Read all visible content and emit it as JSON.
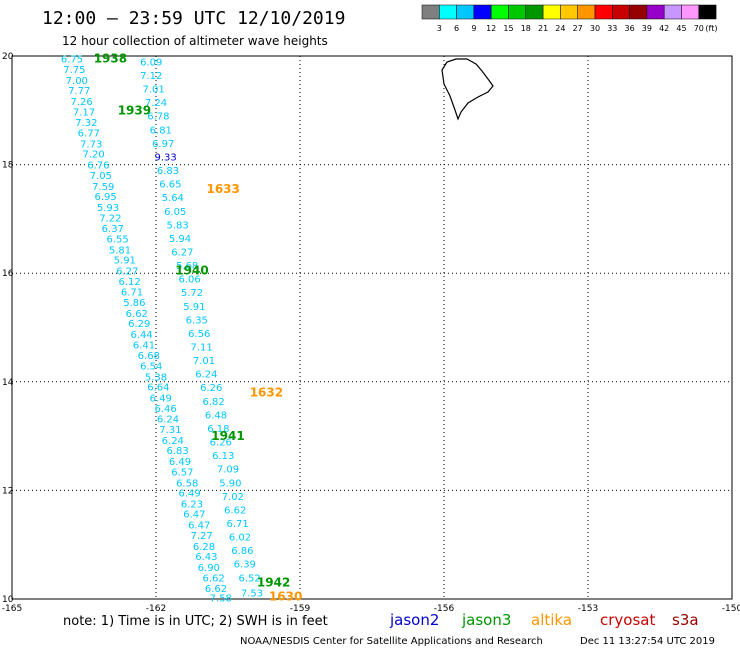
{
  "header": {
    "title": "12:00 – 23:59 UTC 12/10/2019",
    "subtitle": "12 hour collection of altimeter wave heights"
  },
  "colorbar": {
    "colors": [
      "#7f7f7f",
      "#00ffff",
      "#00c8ff",
      "#0000ff",
      "#00ff00",
      "#00c800",
      "#009600",
      "#ffff00",
      "#ffc800",
      "#ff9600",
      "#ff0000",
      "#c80000",
      "#960000",
      "#9600c8",
      "#c896ff",
      "#ff96ff",
      "#000000"
    ],
    "labels": [
      "3",
      "6",
      "9",
      "12",
      "15",
      "18",
      "21",
      "24",
      "27",
      "30",
      "33",
      "36",
      "39",
      "42",
      "45",
      "70",
      "(ft)"
    ]
  },
  "note": "note:  1) Time is in UTC;  2) SWH is in feet",
  "missions": [
    {
      "name": "jason2",
      "color": "#0000cc"
    },
    {
      "name": "jason3",
      "color": "#009600"
    },
    {
      "name": "altika",
      "color": "#ff9600"
    },
    {
      "name": "cryosat",
      "color": "#c80000"
    },
    {
      "name": "s3a",
      "color": "#960000"
    }
  ],
  "credit": "NOAA/NESDIS Center for Satellite Applications and Research",
  "timestamp": "Dec 11 13:27:54 UTC 2019",
  "chart_data": {
    "type": "scatter",
    "title": "12 hour collection of altimeter wave heights",
    "xlim": [
      -165,
      -150
    ],
    "ylim": [
      10,
      20
    ],
    "x_ticks": [
      "-165",
      "-162",
      "-159",
      "-156",
      "-153",
      "-150"
    ],
    "y_ticks": [
      "10",
      "12",
      "14",
      "16",
      "18",
      "20"
    ],
    "grid": true,
    "units": "ft",
    "pass_labels": [
      {
        "text": "1938",
        "lon": -162.95,
        "lat": 19.95,
        "color": "#009600"
      },
      {
        "text": "1939",
        "lon": -162.45,
        "lat": 19.0,
        "color": "#009600"
      },
      {
        "text": "1633",
        "lon": -160.6,
        "lat": 17.55,
        "color": "#ff9600"
      },
      {
        "text": "1940",
        "lon": -161.25,
        "lat": 16.05,
        "color": "#009600"
      },
      {
        "text": "1632",
        "lon": -159.7,
        "lat": 13.8,
        "color": "#ff9600"
      },
      {
        "text": "1941",
        "lon": -160.5,
        "lat": 13.0,
        "color": "#009600"
      },
      {
        "text": "1942",
        "lon": -159.55,
        "lat": 10.3,
        "color": "#009600"
      },
      {
        "text": "1630",
        "lon": -159.3,
        "lat": 10.05,
        "color": "#ff9600"
      }
    ],
    "tracks": [
      {
        "name": "1938-1939",
        "color": "#00c8ff",
        "points": [
          [
            -163.75,
            19.95,
            "6.75"
          ],
          [
            -163.7,
            19.76,
            "7.75"
          ],
          [
            -163.65,
            19.56,
            "7.00"
          ],
          [
            -163.6,
            19.37,
            "7.77"
          ],
          [
            -163.55,
            19.17,
            "7.26"
          ],
          [
            -163.5,
            18.98,
            "7.17"
          ],
          [
            -163.45,
            18.78,
            "7.32"
          ],
          [
            -163.4,
            18.59,
            "6.77"
          ],
          [
            -163.35,
            18.39,
            "7.73"
          ],
          [
            -163.3,
            18.2,
            "7.20"
          ],
          [
            -163.2,
            18.0,
            "6.76"
          ],
          [
            -163.15,
            17.81,
            "7.05"
          ],
          [
            -163.1,
            17.61,
            "7.59"
          ],
          [
            -163.05,
            17.42,
            "6.95"
          ],
          [
            -163.0,
            17.22,
            "5.93"
          ],
          [
            -162.95,
            17.03,
            "7.22"
          ],
          [
            -162.9,
            16.83,
            "6.37"
          ],
          [
            -162.8,
            16.64,
            "6.55"
          ],
          [
            -162.75,
            16.44,
            "5.81"
          ],
          [
            -162.65,
            16.25,
            "5.91"
          ],
          [
            -162.6,
            16.05,
            "6.27"
          ],
          [
            -162.55,
            15.86,
            "6.12"
          ],
          [
            -162.5,
            15.66,
            "6.71"
          ],
          [
            -162.45,
            15.47,
            "5.86"
          ],
          [
            -162.4,
            15.27,
            "6.62"
          ],
          [
            -162.35,
            15.08,
            "6.29"
          ],
          [
            -162.3,
            14.88,
            "6.44"
          ],
          [
            -162.25,
            14.69,
            "6.41"
          ],
          [
            -162.15,
            14.49,
            "6.68"
          ],
          [
            -162.1,
            14.3,
            "6.54"
          ],
          [
            -162.0,
            14.1,
            "5.38"
          ],
          [
            -161.95,
            13.91,
            "6.64"
          ],
          [
            -161.9,
            13.71,
            "6.49"
          ],
          [
            -161.8,
            13.52,
            "6.46"
          ],
          [
            -161.75,
            13.32,
            "6.24"
          ],
          [
            -161.7,
            13.13,
            "7.31"
          ],
          [
            -161.65,
            12.93,
            "6.24"
          ],
          [
            -161.55,
            12.74,
            "6.83"
          ],
          [
            -161.5,
            12.54,
            "6.49"
          ],
          [
            -161.45,
            12.35,
            "6.57"
          ],
          [
            -161.35,
            12.15,
            "6.58"
          ],
          [
            -161.3,
            11.96,
            "6.49"
          ],
          [
            -161.25,
            11.76,
            "6.23"
          ],
          [
            -161.2,
            11.57,
            "6.47"
          ],
          [
            -161.1,
            11.37,
            "6.47"
          ],
          [
            -161.05,
            11.18,
            "7.27"
          ],
          [
            -161.0,
            10.98,
            "6.28"
          ],
          [
            -160.95,
            10.79,
            "6.43"
          ],
          [
            -160.9,
            10.59,
            "6.90"
          ],
          [
            -160.8,
            10.4,
            "6.62"
          ],
          [
            -160.75,
            10.2,
            "6.62"
          ],
          [
            -160.65,
            10.03,
            "7.58"
          ]
        ]
      },
      {
        "name": "1940-1942",
        "color": "#00c8ff",
        "points": [
          [
            -162.1,
            19.9,
            "6.09"
          ],
          [
            -162.1,
            19.65,
            "7.12"
          ],
          [
            -162.05,
            19.4,
            "7.01"
          ],
          [
            -162.0,
            19.15,
            "7.24"
          ],
          [
            -161.95,
            18.9,
            "6.78"
          ],
          [
            -161.9,
            18.65,
            "6.81"
          ],
          [
            -161.85,
            18.4,
            "6.97"
          ],
          [
            -161.8,
            18.15,
            "9.33"
          ],
          [
            -161.75,
            17.9,
            "6.83"
          ],
          [
            -161.7,
            17.65,
            "6.65"
          ],
          [
            -161.65,
            17.4,
            "5.64"
          ],
          [
            -161.6,
            17.15,
            "6.05"
          ],
          [
            -161.55,
            16.9,
            "5.83"
          ],
          [
            -161.5,
            16.65,
            "5.94"
          ],
          [
            -161.45,
            16.4,
            "6.27"
          ],
          [
            -161.35,
            16.15,
            "5.68"
          ],
          [
            -161.3,
            15.9,
            "6.06"
          ],
          [
            -161.25,
            15.65,
            "5.72"
          ],
          [
            -161.2,
            15.4,
            "5.91"
          ],
          [
            -161.15,
            15.15,
            "6.35"
          ],
          [
            -161.1,
            14.9,
            "6.56"
          ],
          [
            -161.05,
            14.65,
            "7.11"
          ],
          [
            -161.0,
            14.4,
            "7.01"
          ],
          [
            -160.95,
            14.15,
            "6.24"
          ],
          [
            -160.85,
            13.9,
            "6.26"
          ],
          [
            -160.8,
            13.65,
            "6.82"
          ],
          [
            -160.75,
            13.4,
            "6.48"
          ],
          [
            -160.7,
            13.15,
            "6.18"
          ],
          [
            -160.65,
            12.9,
            "6.26"
          ],
          [
            -160.6,
            12.65,
            "6.13"
          ],
          [
            -160.5,
            12.4,
            "7.09"
          ],
          [
            -160.45,
            12.15,
            "5.90"
          ],
          [
            -160.4,
            11.9,
            "7.02"
          ],
          [
            -160.35,
            11.65,
            "6.62"
          ],
          [
            -160.3,
            11.4,
            "6.71"
          ],
          [
            -160.25,
            11.15,
            "6.02"
          ],
          [
            -160.2,
            10.9,
            "6.86"
          ],
          [
            -160.15,
            10.65,
            "6.39"
          ],
          [
            -160.05,
            10.4,
            "6.52"
          ],
          [
            -160.0,
            10.12,
            "7.53"
          ]
        ]
      }
    ]
  }
}
